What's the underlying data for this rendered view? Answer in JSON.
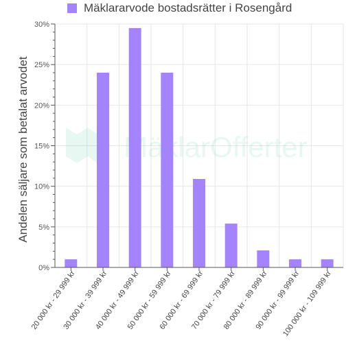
{
  "chart_data": {
    "type": "bar",
    "series": [
      {
        "name": "Mäklararvode bostadsrätter i Rosengård",
        "values": [
          1,
          24,
          29.5,
          24,
          10.9,
          5.4,
          2.1,
          1,
          1
        ],
        "color": "#a384fc"
      }
    ],
    "categories": [
      "20 000 kr - 29 999 kr",
      "30 000 kr - 39 999 kr",
      "40 000 kr - 49 999 kr",
      "50 000 kr - 59 999 kr",
      "60 000 kr - 69 999 kr",
      "70 000 kr - 79 999 kr",
      "80 000 kr - 89 999 kr",
      "90 000 kr - 99 999 kr",
      "100 000 kr - 109 999 kr"
    ],
    "ylabel": "Andelen säljare som betalat arvodet",
    "xlabel": "",
    "ylim": [
      0,
      30
    ],
    "y_ticks": [
      {
        "value": 0,
        "label": "0%"
      },
      {
        "value": 5,
        "label": "5%"
      },
      {
        "value": 10,
        "label": "10%"
      },
      {
        "value": 15,
        "label": "15%"
      },
      {
        "value": 20,
        "label": "20%"
      },
      {
        "value": 25,
        "label": "25%"
      },
      {
        "value": 30,
        "label": "30%"
      }
    ],
    "grid": true,
    "legend_position": "top-left"
  },
  "watermark": {
    "text": "MäklarOfferter",
    "color": "#5bc8a0"
  }
}
